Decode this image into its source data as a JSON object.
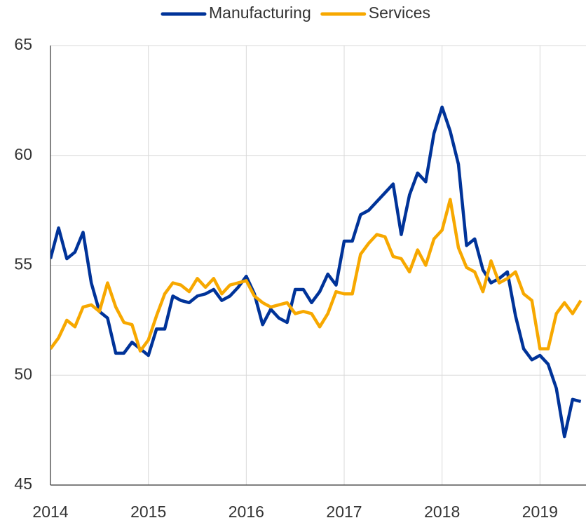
{
  "chart_data": {
    "type": "line",
    "x": [
      2014.0,
      2014.083,
      2014.167,
      2014.25,
      2014.333,
      2014.417,
      2014.5,
      2014.583,
      2014.667,
      2014.75,
      2014.833,
      2014.917,
      2015.0,
      2015.083,
      2015.167,
      2015.25,
      2015.333,
      2015.417,
      2015.5,
      2015.583,
      2015.667,
      2015.75,
      2015.833,
      2015.917,
      2016.0,
      2016.083,
      2016.167,
      2016.25,
      2016.333,
      2016.417,
      2016.5,
      2016.583,
      2016.667,
      2016.75,
      2016.833,
      2016.917,
      2017.0,
      2017.083,
      2017.167,
      2017.25,
      2017.333,
      2017.417,
      2017.5,
      2017.583,
      2017.667,
      2017.75,
      2017.833,
      2017.917,
      2018.0,
      2018.083,
      2018.167,
      2018.25,
      2018.333,
      2018.417,
      2018.5,
      2018.583,
      2018.667,
      2018.75,
      2018.833,
      2018.917,
      2019.0,
      2019.083,
      2019.167,
      2019.25,
      2019.333,
      2019.417
    ],
    "series": [
      {
        "name": "Manufacturing",
        "color": "#003399",
        "values": [
          55.3,
          56.7,
          55.3,
          55.6,
          56.5,
          54.2,
          52.9,
          52.6,
          51.0,
          51.0,
          51.5,
          51.2,
          50.9,
          52.1,
          52.1,
          53.6,
          53.4,
          53.3,
          53.6,
          53.7,
          53.9,
          53.4,
          53.6,
          54.0,
          54.5,
          53.7,
          52.3,
          53.0,
          52.6,
          52.4,
          53.9,
          53.9,
          53.3,
          53.8,
          54.6,
          54.1,
          56.1,
          56.1,
          57.3,
          57.5,
          57.9,
          58.3,
          58.7,
          56.4,
          58.2,
          59.2,
          58.8,
          61.0,
          62.2,
          61.1,
          59.6,
          55.9,
          56.2,
          54.8,
          54.2,
          54.4,
          54.7,
          52.7,
          51.2,
          50.7,
          50.9,
          50.5,
          49.4,
          47.2,
          48.9,
          48.8
        ]
      },
      {
        "name": "Services",
        "color": "#f7a800",
        "values": [
          51.2,
          51.7,
          52.5,
          52.2,
          53.1,
          53.2,
          52.9,
          54.2,
          53.1,
          52.4,
          52.3,
          51.1,
          51.6,
          52.7,
          53.7,
          54.2,
          54.1,
          53.8,
          54.4,
          54.0,
          54.4,
          53.7,
          54.1,
          54.2,
          54.3,
          53.6,
          53.3,
          53.1,
          53.2,
          53.3,
          52.8,
          52.9,
          52.8,
          52.2,
          52.8,
          53.8,
          53.7,
          53.7,
          55.5,
          56.0,
          56.4,
          56.3,
          55.4,
          55.3,
          54.7,
          55.7,
          55.0,
          56.2,
          56.6,
          58.0,
          55.8,
          54.9,
          54.7,
          53.8,
          55.2,
          54.2,
          54.4,
          54.7,
          53.7,
          53.4,
          51.2,
          51.2,
          52.8,
          53.3,
          52.8,
          53.4
        ]
      }
    ],
    "xlim": [
      2014,
      2019.47
    ],
    "xticks": [
      2014,
      2015,
      2016,
      2017,
      2018,
      2019
    ],
    "ylim": [
      45,
      65
    ],
    "yticks": [
      45,
      50,
      55,
      60,
      65
    ],
    "grid": true,
    "legend": "top"
  }
}
